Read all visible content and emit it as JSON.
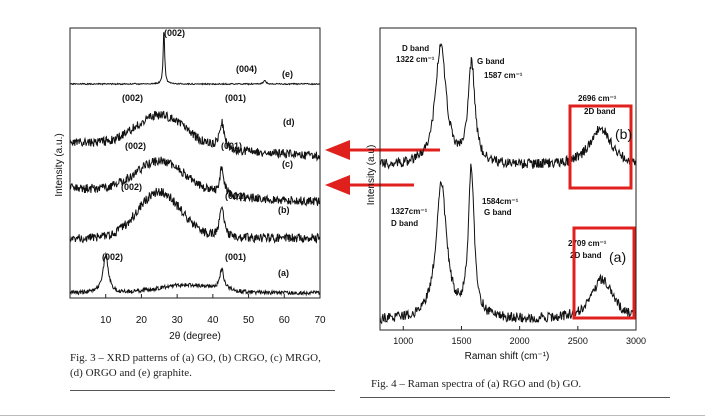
{
  "chart_data": [
    {
      "type": "line",
      "title": "",
      "xlabel": "2θ (degree)",
      "ylabel": "Intensity (a.u.)",
      "xlim": [
        0,
        70
      ],
      "x_ticks": [
        "10",
        "20",
        "30",
        "40",
        "50",
        "60",
        "70"
      ],
      "grid": false,
      "legend": "none",
      "series": [
        {
          "name": "(e)",
          "peaks": [
            {
              "x": 26.3,
              "label": "(002)"
            },
            {
              "x": 54.5,
              "label": "(004)"
            }
          ]
        },
        {
          "name": "(d)",
          "peaks": [
            {
              "x": 25.5,
              "label": "(002)"
            },
            {
              "x": 42.5,
              "label": "(001)"
            }
          ]
        },
        {
          "name": "(c)",
          "peaks": [
            {
              "x": 25.5,
              "label": "(002)"
            },
            {
              "x": 42.5,
              "label": "(001)"
            }
          ]
        },
        {
          "name": "(b)",
          "peaks": [
            {
              "x": 25.0,
              "label": "(002)"
            },
            {
              "x": 42.5,
              "label": "(001)"
            }
          ]
        },
        {
          "name": "(a)",
          "peaks": [
            {
              "x": 10.0,
              "label": "(002)"
            },
            {
              "x": 42.5,
              "label": "(001)"
            }
          ]
        }
      ]
    },
    {
      "type": "line",
      "title": "",
      "xlabel": "Raman shift (cm⁻¹)",
      "ylabel": "Intensity (a.u)",
      "xlim": [
        800,
        3000
      ],
      "x_ticks": [
        "1000",
        "1500",
        "2000",
        "2500",
        "3000"
      ],
      "grid": false,
      "legend": "none",
      "series": [
        {
          "name": "(b)",
          "peaks": [
            {
              "x": 1322,
              "label": "D band"
            },
            {
              "x": 1587,
              "label": "G band"
            },
            {
              "x": 2696,
              "label": "2D band"
            }
          ]
        },
        {
          "name": "(a)",
          "peaks": [
            {
              "x": 1327,
              "label": "D band"
            },
            {
              "x": 1584,
              "label": "G band"
            },
            {
              "x": 2709,
              "label": "2D band"
            }
          ]
        }
      ]
    }
  ],
  "xrd": {
    "series_labels": {
      "e": "(e)",
      "d": "(d)",
      "c": "(c)",
      "b": "(b)",
      "a": "(a)"
    },
    "peak_labels": {
      "e_002": "(002)",
      "e_004": "(004)",
      "d_002": "(002)",
      "d_001": "(001)",
      "c_002": "(002)",
      "c_001": "(001)",
      "b_002": "(002)",
      "b_001": "(001)",
      "a_002": "(002)",
      "a_001": "(001)"
    },
    "caption": "Fig. 3 – XRD patterns of (a) GO, (b) CRGO, (c) MRGO, (d) ORGO and (e) graphite."
  },
  "raman": {
    "annotations": {
      "b_d_band": "D band",
      "b_d_value": "1322 cm⁻¹",
      "b_g_band": "G band",
      "b_g_value": "1587 cm⁻¹",
      "b_2d_value": "2696 cm⁻¹",
      "b_2d_band": "2D band",
      "a_d_value": "1327cm⁻¹",
      "a_d_band": "D band",
      "a_g_value": "1584cm⁻¹",
      "a_g_band": "G band",
      "a_2d_value": "2709 cm⁻¹",
      "a_2d_band": "2D band"
    },
    "box_labels": {
      "b": "(b)",
      "a": "(a)"
    },
    "caption": "Fig. 4 – Raman spectra of (a) RGO and (b) GO."
  },
  "colors": {
    "highlight": "#e0201c",
    "trace": "#111111"
  }
}
